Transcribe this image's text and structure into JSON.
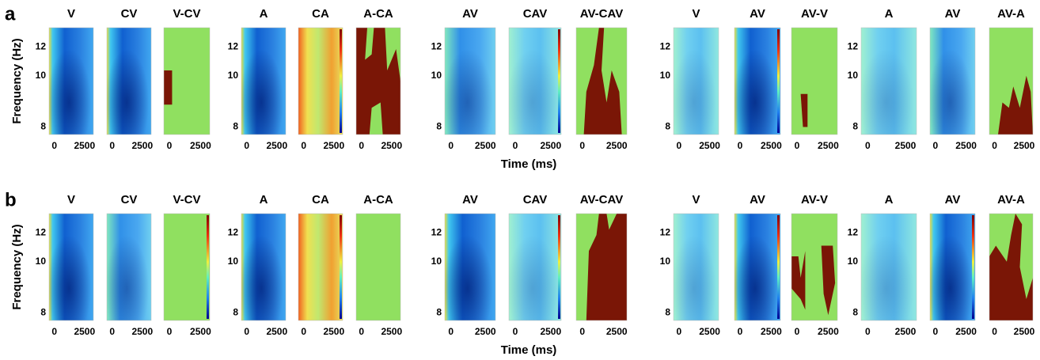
{
  "figure": {
    "rows": [
      {
        "label": "a",
        "y_label": "Frequency (Hz)",
        "x_label": "Time (ms)",
        "groups": [
          {
            "titles": [
              "V",
              "CV",
              "V-CV"
            ]
          },
          {
            "titles": [
              "A",
              "CA",
              "A-CA"
            ]
          },
          {
            "titles": [
              "AV",
              "CAV",
              "AV-CAV"
            ]
          },
          {
            "titles": [
              "V",
              "AV",
              "AV-V"
            ]
          },
          {
            "titles": [
              "A",
              "AV",
              "AV-A"
            ]
          }
        ]
      },
      {
        "label": "b",
        "y_label": "Frequency (Hz)",
        "x_label": "Time (ms)",
        "groups": [
          {
            "titles": [
              "V",
              "CV",
              "V-CV"
            ]
          },
          {
            "titles": [
              "A",
              "CA",
              "A-CA"
            ]
          },
          {
            "titles": [
              "AV",
              "CAV",
              "AV-CAV"
            ]
          },
          {
            "titles": [
              "V",
              "AV",
              "AV-V"
            ]
          },
          {
            "titles": [
              "A",
              "AV",
              "AV-A"
            ]
          }
        ]
      }
    ],
    "yticks": [
      "8",
      "10",
      "12"
    ],
    "xticks": [
      "0",
      "2500"
    ]
  }
}
